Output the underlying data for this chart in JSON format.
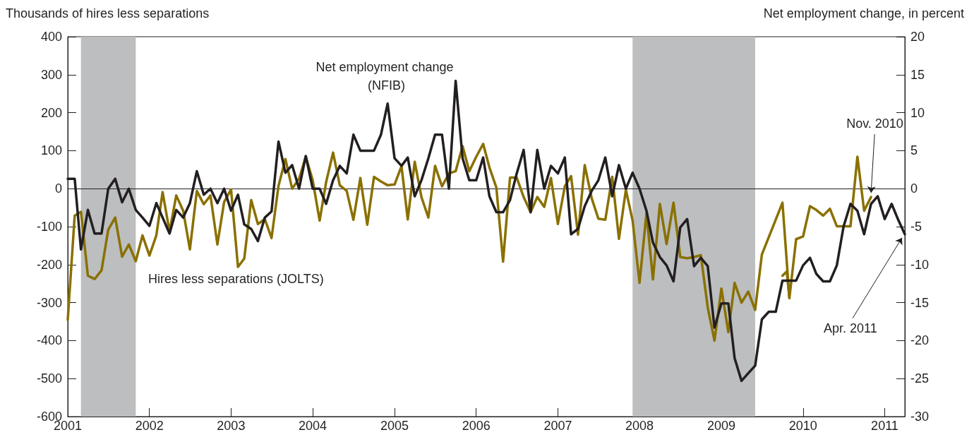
{
  "chart_data": {
    "type": "line",
    "ylabel": "Thousands of hires less separations",
    "y2label": "Net employment change, in percent",
    "xlim": [
      "2001-01",
      "2011-04"
    ],
    "xticks": [
      "2001",
      "2002",
      "2003",
      "2004",
      "2005",
      "2006",
      "2007",
      "2008",
      "2009",
      "2010",
      "2011"
    ],
    "ylim": [
      -600,
      400
    ],
    "yticks": [
      -600,
      -500,
      -400,
      -300,
      -200,
      -100,
      0,
      100,
      200,
      300,
      400
    ],
    "y2lim": [
      -30,
      20
    ],
    "y2ticks": [
      -30,
      -25,
      -20,
      -15,
      -10,
      -5,
      0,
      5,
      10,
      15,
      20
    ],
    "marker": "none",
    "x": [
      "2001-01",
      "2001-02",
      "2001-03",
      "2001-04",
      "2001-05",
      "2001-06",
      "2001-07",
      "2001-08",
      "2001-09",
      "2001-10",
      "2001-11",
      "2001-12",
      "2002-01",
      "2002-02",
      "2002-03",
      "2002-04",
      "2002-05",
      "2002-06",
      "2002-07",
      "2002-08",
      "2002-09",
      "2002-10",
      "2002-11",
      "2002-12",
      "2003-01",
      "2003-02",
      "2003-03",
      "2003-04",
      "2003-05",
      "2003-06",
      "2003-07",
      "2003-08",
      "2003-09",
      "2003-10",
      "2003-11",
      "2003-12",
      "2004-01",
      "2004-02",
      "2004-03",
      "2004-04",
      "2004-05",
      "2004-06",
      "2004-07",
      "2004-08",
      "2004-09",
      "2004-10",
      "2004-11",
      "2004-12",
      "2005-01",
      "2005-02",
      "2005-03",
      "2005-04",
      "2005-05",
      "2005-06",
      "2005-07",
      "2005-08",
      "2005-09",
      "2005-10",
      "2005-11",
      "2005-12",
      "2006-01",
      "2006-02",
      "2006-03",
      "2006-04",
      "2006-05",
      "2006-06",
      "2006-07",
      "2006-08",
      "2006-09",
      "2006-10",
      "2006-11",
      "2006-12",
      "2007-01",
      "2007-02",
      "2007-03",
      "2007-04",
      "2007-05",
      "2007-06",
      "2007-07",
      "2007-08",
      "2007-09",
      "2007-10",
      "2007-11",
      "2007-12",
      "2008-01",
      "2008-02",
      "2008-03",
      "2008-04",
      "2008-05",
      "2008-06",
      "2008-07",
      "2008-08",
      "2008-09",
      "2008-10",
      "2008-11",
      "2008-12",
      "2009-01",
      "2009-02",
      "2009-03",
      "2009-04",
      "2009-05",
      "2009-06",
      "2009-07",
      "2009-08",
      "2009-09",
      "2009-10",
      "2009-11",
      "2009-12",
      "2010-01",
      "2010-02",
      "2010-03",
      "2010-04",
      "2010-05",
      "2010-06",
      "2010-07",
      "2010-08",
      "2010-09",
      "2010-10",
      "2010-11",
      "2010-12",
      "2011-01",
      "2011-02",
      "2011-03",
      "2011-04"
    ],
    "series": [
      {
        "color": "#8a7000",
        "x": [
          "2001-01",
          "2001-02",
          "2001-03",
          "2001-04",
          "2001-05",
          "2001-06",
          "2001-07",
          "2001-08",
          "2001-09",
          "2001-10",
          "2001-11",
          "2001-12",
          "2002-01",
          "2002-02",
          "2002-03",
          "2002-04",
          "2002-05",
          "2002-06",
          "2002-07",
          "2002-08",
          "2002-09",
          "2002-10",
          "2002-11",
          "2002-12",
          "2003-01",
          "2003-02",
          "2003-03",
          "2003-04",
          "2003-05",
          "2003-06",
          "2003-07",
          "2003-08",
          "2003-09",
          "2003-10",
          "2003-11",
          "2003-12",
          "2004-01",
          "2004-02",
          "2004-03",
          "2004-04",
          "2004-05",
          "2004-06",
          "2004-07",
          "2004-08",
          "2004-09",
          "2004-10",
          "2004-11",
          "2004-12",
          "2005-01",
          "2005-02",
          "2005-03",
          "2005-04",
          "2005-05",
          "2005-06",
          "2005-07",
          "2005-08",
          "2005-09",
          "2005-10",
          "2005-11",
          "2005-12",
          "2006-01",
          "2006-02",
          "2006-03",
          "2006-04",
          "2006-05",
          "2006-06",
          "2006-07",
          "2006-08",
          "2006-09",
          "2006-10",
          "2006-11",
          "2006-12",
          "2007-01",
          "2007-02",
          "2007-03",
          "2007-04",
          "2007-05",
          "2007-06",
          "2007-07",
          "2007-08",
          "2007-09",
          "2007-10",
          "2007-11",
          "2007-12",
          "2008-01",
          "2008-02",
          "2008-03",
          "2008-04",
          "2008-05",
          "2008-06",
          "2008-07",
          "2008-08",
          "2008-09",
          "2008-10",
          "2008-11",
          "2008-12",
          "2009-01",
          "2009-02",
          "2009-03",
          "2009-04",
          "2009-05",
          "2009-06",
          "2009-07",
          "2009-10",
          "2009-11",
          "2009-12",
          "2010-01",
          "2010-02",
          "2010-03",
          "2010-04",
          "2010-05",
          "2010-06",
          "2010-07",
          "2010-08",
          "2010-09",
          "2010-10",
          "2010-11"
        ],
        "values": [
          -345,
          -71,
          -61,
          -229,
          -238,
          -215,
          -108,
          -76,
          -179,
          -147,
          -191,
          -123,
          -176,
          -123,
          -9,
          -113,
          -18,
          -58,
          -160,
          -6,
          -41,
          -18,
          -147,
          -35,
          -2,
          -206,
          -184,
          -30,
          -93,
          -80,
          -130,
          7,
          78,
          0,
          26,
          84,
          22,
          -84,
          17,
          95,
          9,
          -6,
          -82,
          28,
          -95,
          31,
          19,
          9,
          11,
          59,
          -81,
          71,
          -22,
          -76,
          60,
          6,
          40,
          46,
          112,
          46,
          84,
          118,
          56,
          3,
          -192,
          29,
          29,
          -22,
          -62,
          -22,
          -48,
          28,
          -93,
          6,
          33,
          -121,
          62,
          -25,
          -79,
          -82,
          31,
          -132,
          -3,
          -84,
          -248,
          -65,
          -239,
          -40,
          -146,
          -37,
          -180,
          -183,
          -180,
          -175,
          -313,
          -400,
          -263,
          -378,
          -248,
          -300,
          -271,
          -319,
          -173,
          -37,
          -288,
          -133,
          -126,
          -46,
          -56,
          -71,
          -53,
          -99,
          -99,
          -99,
          84,
          -58,
          -22
        ]
      },
      {
        "color": "#8a7000",
        "x": [
          "2009-10",
          "2009-10-20",
          "2009-11"
        ],
        "values": [
          -229,
          -218,
          -288
        ]
      },
      {
        "color": "#231f20",
        "axis": "y2",
        "values": [
          1.3,
          1.3,
          -8.0,
          -2.8,
          -5.9,
          -5.9,
          0,
          1.3,
          -1.8,
          0,
          -2.8,
          -3.8,
          -4.9,
          -1.9,
          -3.8,
          -5.9,
          -2.8,
          -3.8,
          -1.9,
          2.3,
          -0.8,
          0,
          -1.9,
          0,
          -2.9,
          -0.8,
          -4.7,
          -5.3,
          -6.9,
          -3.8,
          -3.0,
          6.2,
          2.1,
          3.1,
          0,
          4.3,
          0,
          0,
          -2.0,
          1.1,
          3.0,
          2.0,
          7.1,
          5.0,
          5.0,
          5.0,
          7.1,
          11.2,
          4.0,
          3.0,
          4.1,
          -1.0,
          1.1,
          4.0,
          7.1,
          7.1,
          0,
          14.2,
          4.0,
          1.1,
          1.1,
          4.1,
          -1.0,
          -3.1,
          -3.1,
          -1.5,
          2.0,
          5.1,
          -3.1,
          5.1,
          0,
          3.0,
          2.0,
          4.1,
          -6.0,
          -5.3,
          -2.3,
          -0.3,
          1.1,
          4.1,
          -1.0,
          3.1,
          0,
          2.1,
          0,
          -2.9,
          -7.1,
          -9.0,
          -10.1,
          -12.2,
          -5.1,
          -4.0,
          -10.2,
          -9.1,
          -10.2,
          -18.3,
          -15.1,
          -15.1,
          -22.3,
          -25.3,
          -24.3,
          -23.3,
          -17.2,
          -16.2,
          -16.2,
          -12.1,
          -12.1,
          -12.1,
          -10.1,
          -9.1,
          -11.2,
          -12.2,
          -12.2,
          -10.1,
          -5.0,
          -2.0,
          -2.9,
          -6.0,
          -2.0,
          -1.0,
          -4.0,
          -2.0,
          -4.0,
          -6.0
        ]
      }
    ],
    "bands": [
      {
        "axis": "x",
        "from": "2001-03",
        "to": "2001-11",
        "color": "#bcbec0"
      },
      {
        "axis": "x",
        "from": "2007-12",
        "to": "2009-06",
        "color": "#bcbec0"
      }
    ],
    "ref_lines": [
      {
        "axis": "y",
        "value": 0,
        "color": "#231f20"
      }
    ],
    "annotations": [
      "Hires less separations (JOLTS)",
      "Net employment change (NFIB)",
      {
        "text": "Nov. 2010",
        "x": "2010-11",
        "y": -22
      },
      {
        "text": "Apr. 2011",
        "x": "2011-04",
        "y": -120
      }
    ]
  }
}
